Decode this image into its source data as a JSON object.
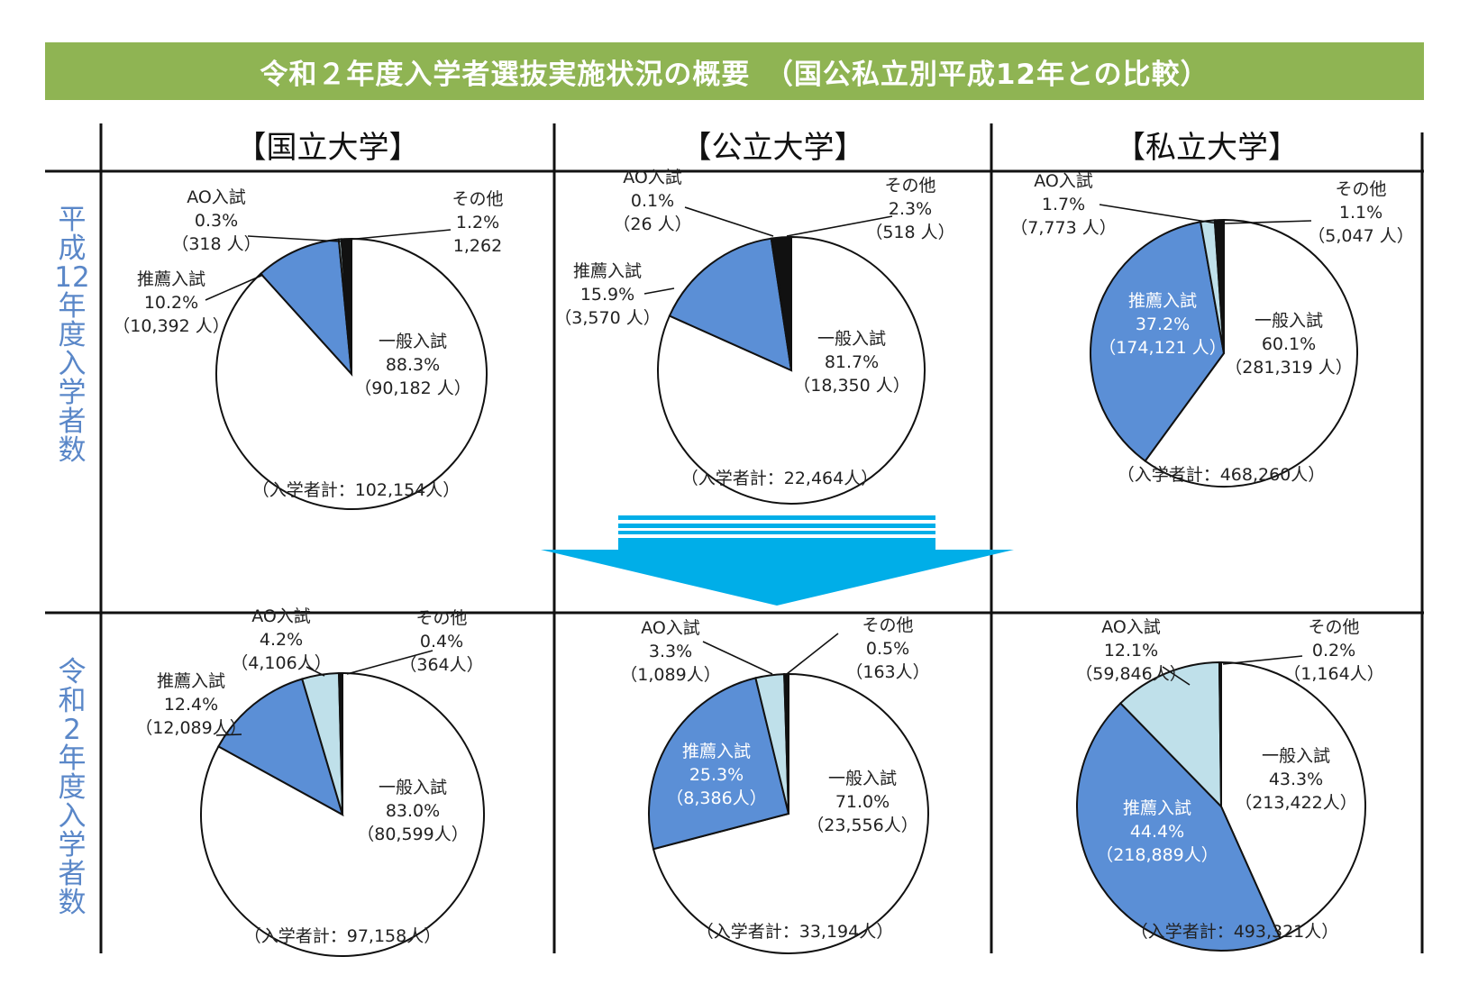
{
  "title": "令和２年度入学者選抜実施状況の概要　（国公私立別平成12年との比較）",
  "columns": [
    "【国立大学】",
    "【公立大学】",
    "【私立大学】"
  ],
  "rows": [
    {
      "label_chars": [
        "平",
        "成",
        "12",
        "年",
        "度",
        "入",
        "学",
        "者",
        "数"
      ]
    },
    {
      "label_chars": [
        "令",
        "和",
        "2",
        "年",
        "度",
        "入",
        "学",
        "者",
        "数"
      ]
    }
  ],
  "colors": {
    "banner": "#8fb453",
    "general": "#ffffff",
    "recommend": "#5b8fd6",
    "ao": "#bfe0ea",
    "other": "#111111",
    "arrow": "#00aee8",
    "row_label": "#5a87c8"
  },
  "chart_data": [
    {
      "type": "pie",
      "group": "国立大学",
      "year": "平成12年度",
      "total_label": "（入学者計：102,154人）",
      "slices": [
        {
          "name": "一般入試",
          "percent": 88.3,
          "count": 90182,
          "lines": [
            "一般入試",
            "88.3%",
            "（90,182 人）"
          ]
        },
        {
          "name": "推薦入試",
          "percent": 10.2,
          "count": 10392,
          "lines": [
            "推薦入試",
            "10.2%",
            "（10,392 人）"
          ]
        },
        {
          "name": "AO入試",
          "percent": 0.3,
          "count": 318,
          "lines": [
            "AO入試",
            "0.3%",
            "（318 人）"
          ]
        },
        {
          "name": "その他",
          "percent": 1.2,
          "count": 1262,
          "lines": [
            "その他",
            "1.2%",
            "1,262"
          ]
        }
      ]
    },
    {
      "type": "pie",
      "group": "公立大学",
      "year": "平成12年度",
      "total_label": "（入学者計：22,464人）",
      "slices": [
        {
          "name": "一般入試",
          "percent": 81.7,
          "count": 18350,
          "lines": [
            "一般入試",
            "81.7%",
            "（18,350 人）"
          ]
        },
        {
          "name": "推薦入試",
          "percent": 15.9,
          "count": 3570,
          "lines": [
            "推薦入試",
            "15.9%",
            "（3,570 人）"
          ]
        },
        {
          "name": "AO入試",
          "percent": 0.1,
          "count": 26,
          "lines": [
            "AO入試",
            "0.1%",
            "（26 人）"
          ]
        },
        {
          "name": "その他",
          "percent": 2.3,
          "count": 518,
          "lines": [
            "その他",
            "2.3%",
            "（518 人）"
          ]
        }
      ]
    },
    {
      "type": "pie",
      "group": "私立大学",
      "year": "平成12年度",
      "total_label": "（入学者計：468,260人）",
      "slices": [
        {
          "name": "一般入試",
          "percent": 60.1,
          "count": 281319,
          "lines": [
            "一般入試",
            "60.1%",
            "（281,319 人）"
          ]
        },
        {
          "name": "推薦入試",
          "percent": 37.2,
          "count": 174121,
          "lines": [
            "推薦入試",
            "37.2%",
            "（174,121 人）"
          ]
        },
        {
          "name": "AO入試",
          "percent": 1.7,
          "count": 7773,
          "lines": [
            "AO入試",
            "1.7%",
            "（7,773 人）"
          ]
        },
        {
          "name": "その他",
          "percent": 1.1,
          "count": 5047,
          "lines": [
            "その他",
            "1.1%",
            "（5,047 人）"
          ]
        }
      ]
    },
    {
      "type": "pie",
      "group": "国立大学",
      "year": "令和2年度",
      "total_label": "（入学者計：97,158人）",
      "slices": [
        {
          "name": "一般入試",
          "percent": 83.0,
          "count": 80599,
          "lines": [
            "一般入試",
            "83.0%",
            "（80,599人）"
          ]
        },
        {
          "name": "推薦入試",
          "percent": 12.4,
          "count": 12089,
          "lines": [
            "推薦入試",
            "12.4%",
            "（12,089人）"
          ]
        },
        {
          "name": "AO入試",
          "percent": 4.2,
          "count": 4106,
          "lines": [
            "AO入試",
            "4.2%",
            "（4,106人）"
          ]
        },
        {
          "name": "その他",
          "percent": 0.4,
          "count": 364,
          "lines": [
            "その他",
            "0.4%",
            "（364人）"
          ]
        }
      ]
    },
    {
      "type": "pie",
      "group": "公立大学",
      "year": "令和2年度",
      "total_label": "（入学者計：33,194人）",
      "slices": [
        {
          "name": "一般入試",
          "percent": 71.0,
          "count": 23556,
          "lines": [
            "一般入試",
            "71.0%",
            "（23,556人）"
          ]
        },
        {
          "name": "推薦入試",
          "percent": 25.3,
          "count": 8386,
          "lines": [
            "推薦入試",
            "25.3%",
            "（8,386人）"
          ]
        },
        {
          "name": "AO入試",
          "percent": 3.3,
          "count": 1089,
          "lines": [
            "AO入試",
            "3.3%",
            "（1,089人）"
          ]
        },
        {
          "name": "その他",
          "percent": 0.5,
          "count": 163,
          "lines": [
            "その他",
            "0.5%",
            "（163人）"
          ]
        }
      ]
    },
    {
      "type": "pie",
      "group": "私立大学",
      "year": "令和2年度",
      "total_label": "（入学者計：493,321人）",
      "slices": [
        {
          "name": "一般入試",
          "percent": 43.3,
          "count": 213422,
          "lines": [
            "一般入試",
            "43.3%",
            "（213,422人）"
          ]
        },
        {
          "name": "推薦入試",
          "percent": 44.4,
          "count": 218889,
          "lines": [
            "推薦入試",
            "44.4%",
            "（218,889人）"
          ]
        },
        {
          "name": "AO入試",
          "percent": 12.1,
          "count": 59846,
          "lines": [
            "AO入試",
            "12.1%",
            "（59,846人）"
          ]
        },
        {
          "name": "その他",
          "percent": 0.2,
          "count": 1164,
          "lines": [
            "その他",
            "0.2%",
            "（1,164人）"
          ]
        }
      ]
    }
  ]
}
